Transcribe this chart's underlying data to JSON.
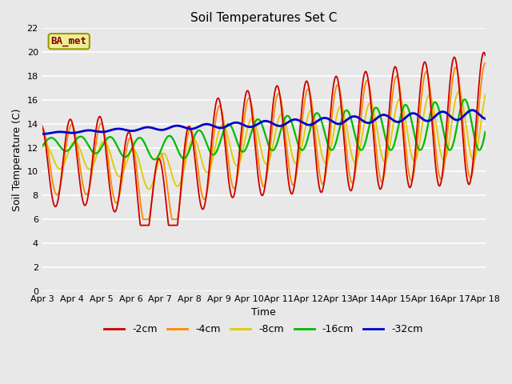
{
  "title": "Soil Temperatures Set C",
  "xlabel": "Time",
  "ylabel": "Soil Temperature (C)",
  "ylim": [
    0,
    22
  ],
  "yticks": [
    0,
    2,
    4,
    6,
    8,
    10,
    12,
    14,
    16,
    18,
    20,
    22
  ],
  "colors": {
    "-2cm": "#cc0000",
    "-4cm": "#ff8800",
    "-8cm": "#ddcc00",
    "-16cm": "#00bb00",
    "-32cm": "#0000cc"
  },
  "legend_label": "BA_met",
  "legend_box_facecolor": "#eeee99",
  "legend_box_edgecolor": "#999900",
  "legend_text_color": "#880000",
  "fig_facecolor": "#e8e8e8",
  "plot_facecolor": "#e8e8e8",
  "grid_color": "#ffffff",
  "xtick_labels": [
    "Apr 3",
    "Apr 4",
    "Apr 5",
    "Apr 6",
    "Apr 7",
    "Apr 8",
    "Apr 9",
    "Apr 10",
    "Apr 11",
    "Apr 12",
    "Apr 13",
    "Apr 14",
    "Apr 15",
    "Apr 16",
    "Apr 17",
    "Apr 18"
  ],
  "figsize": [
    6.4,
    4.8
  ],
  "dpi": 100
}
